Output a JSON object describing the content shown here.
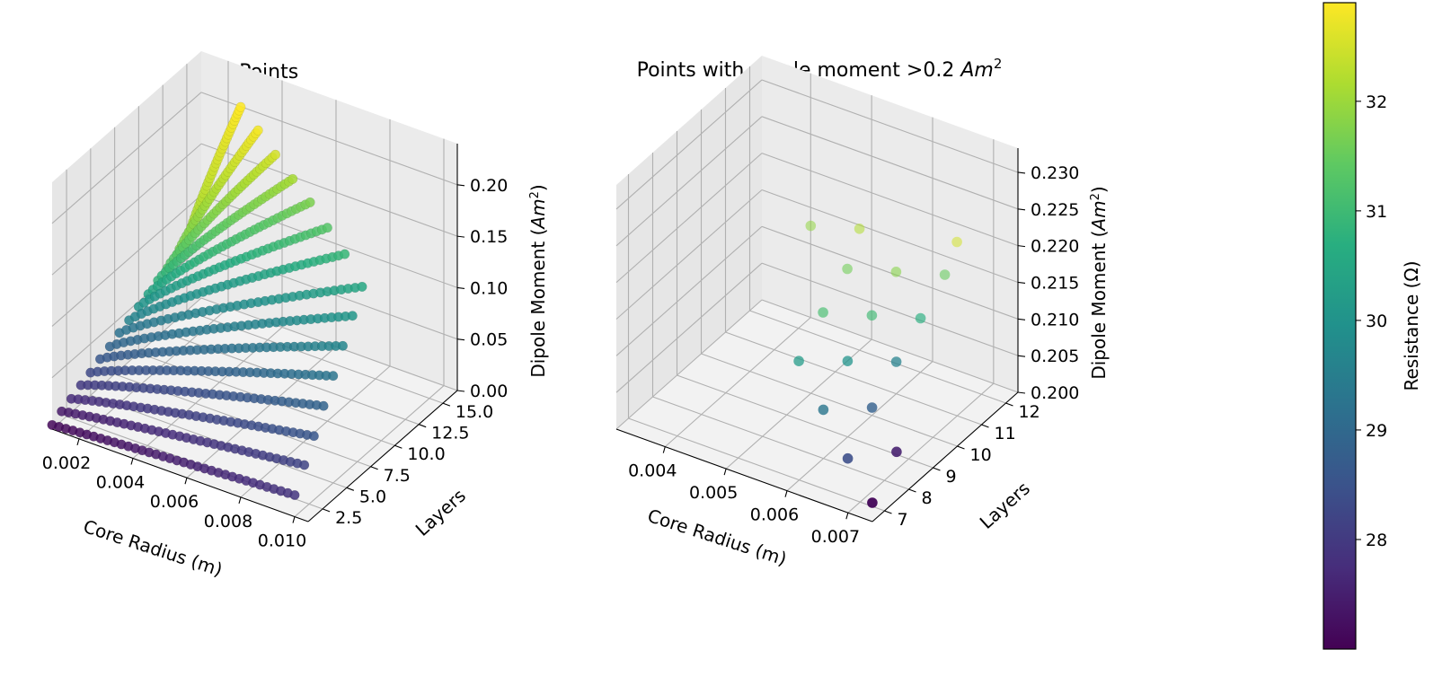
{
  "chart_data": [
    {
      "type": "scatter",
      "projection": "3d",
      "title": "All Points",
      "xlabel": "Core Radius (m)",
      "ylabel": "Layers",
      "zlabel_prefix": "Dipole Moment (",
      "zlabel_unit_base": "Am",
      "zlabel_unit_exp": "2",
      "zlabel_suffix": ")",
      "xlim": [
        0.001,
        0.0105
      ],
      "ylim": [
        1,
        16.5
      ],
      "zlim": [
        0,
        0.24
      ],
      "xticks": [
        "0.002",
        "0.004",
        "0.006",
        "0.008",
        "0.010"
      ],
      "yticks": [
        "2.5",
        "5.0",
        "7.5",
        "10.0",
        "12.5",
        "15.0"
      ],
      "zticks": [
        "0.00",
        "0.05",
        "0.10",
        "0.15",
        "0.20"
      ],
      "grid": true,
      "color_variable": "Resistance (Ω)",
      "series": [
        {
          "layers": 1,
          "x": [
            0.001,
            0.01
          ],
          "z": [
            0.004,
            0.021
          ],
          "c": [
            27.1,
            27.9
          ]
        },
        {
          "layers": 2,
          "x": [
            0.001,
            0.01
          ],
          "z": [
            0.009,
            0.042
          ],
          "c": [
            27.4,
            28.2
          ]
        },
        {
          "layers": 3,
          "x": [
            0.001,
            0.01
          ],
          "z": [
            0.013,
            0.062
          ],
          "c": [
            27.7,
            28.6
          ]
        },
        {
          "layers": 4,
          "x": [
            0.001,
            0.01
          ],
          "z": [
            0.018,
            0.083
          ],
          "c": [
            28.0,
            28.9
          ]
        },
        {
          "layers": 5,
          "x": [
            0.001,
            0.01
          ],
          "z": [
            0.022,
            0.104
          ],
          "c": [
            28.3,
            29.3
          ]
        },
        {
          "layers": 6,
          "x": [
            0.001,
            0.01
          ],
          "z": [
            0.027,
            0.125
          ],
          "c": [
            28.6,
            29.7
          ]
        },
        {
          "layers": 7,
          "x": [
            0.001,
            0.01
          ],
          "z": [
            0.031,
            0.146
          ],
          "c": [
            28.9,
            30.1
          ]
        },
        {
          "layers": 8,
          "x": [
            0.001,
            0.01
          ],
          "z": [
            0.036,
            0.166
          ],
          "c": [
            29.2,
            30.5
          ]
        },
        {
          "layers": 9,
          "x": [
            0.001,
            0.009
          ],
          "z": [
            0.04,
            0.18
          ],
          "c": [
            29.6,
            30.9
          ]
        },
        {
          "layers": 10,
          "x": [
            0.001,
            0.008
          ],
          "z": [
            0.045,
            0.188
          ],
          "c": [
            30.0,
            31.3
          ]
        },
        {
          "layers": 11,
          "x": [
            0.001,
            0.007
          ],
          "z": [
            0.049,
            0.195
          ],
          "c": [
            30.4,
            31.7
          ]
        },
        {
          "layers": 12,
          "x": [
            0.001,
            0.006
          ],
          "z": [
            0.054,
            0.2
          ],
          "c": [
            30.8,
            32.1
          ]
        },
        {
          "layers": 13,
          "x": [
            0.001,
            0.005
          ],
          "z": [
            0.058,
            0.206
          ],
          "c": [
            31.2,
            32.5
          ]
        },
        {
          "layers": 14,
          "x": [
            0.001,
            0.004
          ],
          "z": [
            0.063,
            0.212
          ],
          "c": [
            31.6,
            32.8
          ]
        },
        {
          "layers": 15,
          "x": [
            0.001,
            0.003
          ],
          "z": [
            0.067,
            0.217
          ],
          "c": [
            32.0,
            32.9
          ]
        }
      ]
    },
    {
      "type": "scatter",
      "projection": "3d",
      "title_prefix": "Points with dipole moment >0.2 ",
      "title_unit_base": "Am",
      "title_unit_exp": "2",
      "xlabel": "Core Radius (m)",
      "ylabel": "Layers",
      "zlabel_prefix": "Dipole Moment (",
      "zlabel_unit_base": "Am",
      "zlabel_unit_exp": "2",
      "zlabel_suffix": ")",
      "xlim": [
        0.0032,
        0.0074
      ],
      "ylim": [
        6.5,
        12.5
      ],
      "zlim": [
        0.2,
        0.2333
      ],
      "xticks": [
        "0.004",
        "0.005",
        "0.006",
        "0.007"
      ],
      "yticks": [
        "7",
        "8",
        "9",
        "10",
        "11",
        "12"
      ],
      "zticks": [
        "0.200",
        "0.205",
        "0.210",
        "0.215",
        "0.220",
        "0.225",
        "0.230"
      ],
      "grid": true,
      "points": [
        {
          "x": 0.0072,
          "y": 7,
          "z": 0.2005,
          "c": 27.1
        },
        {
          "x": 0.0072,
          "y": 8,
          "z": 0.2045,
          "c": 27.5
        },
        {
          "x": 0.0064,
          "y": 8,
          "z": 0.2012,
          "c": 28.4
        },
        {
          "x": 0.0064,
          "y": 9,
          "z": 0.2052,
          "c": 28.8
        },
        {
          "x": 0.0056,
          "y": 9,
          "z": 0.2025,
          "c": 29.3
        },
        {
          "x": 0.0064,
          "y": 10,
          "z": 0.2085,
          "c": 29.6
        },
        {
          "x": 0.0056,
          "y": 10,
          "z": 0.2062,
          "c": 30.0
        },
        {
          "x": 0.0048,
          "y": 10,
          "z": 0.2038,
          "c": 30.2
        },
        {
          "x": 0.0064,
          "y": 11,
          "z": 0.2115,
          "c": 30.7
        },
        {
          "x": 0.0056,
          "y": 11,
          "z": 0.2095,
          "c": 31.0
        },
        {
          "x": 0.0048,
          "y": 11,
          "z": 0.2075,
          "c": 31.1
        },
        {
          "x": 0.0064,
          "y": 12,
          "z": 0.2145,
          "c": 31.5
        },
        {
          "x": 0.0056,
          "y": 12,
          "z": 0.2125,
          "c": 31.8
        },
        {
          "x": 0.0048,
          "y": 12,
          "z": 0.2105,
          "c": 31.6
        },
        {
          "x": 0.0064,
          "y": 12.5,
          "z": 0.2175,
          "c": 32.5
        },
        {
          "x": 0.0048,
          "y": 12.5,
          "z": 0.2145,
          "c": 32.2
        },
        {
          "x": 0.004,
          "y": 12.5,
          "z": 0.2125,
          "c": 31.9
        }
      ]
    }
  ],
  "colorbar": {
    "label": "Resistance (Ω)",
    "min": 27.0,
    "max": 32.9,
    "ticks": [
      "28",
      "29",
      "30",
      "31",
      "32"
    ],
    "colormap": "viridis"
  }
}
